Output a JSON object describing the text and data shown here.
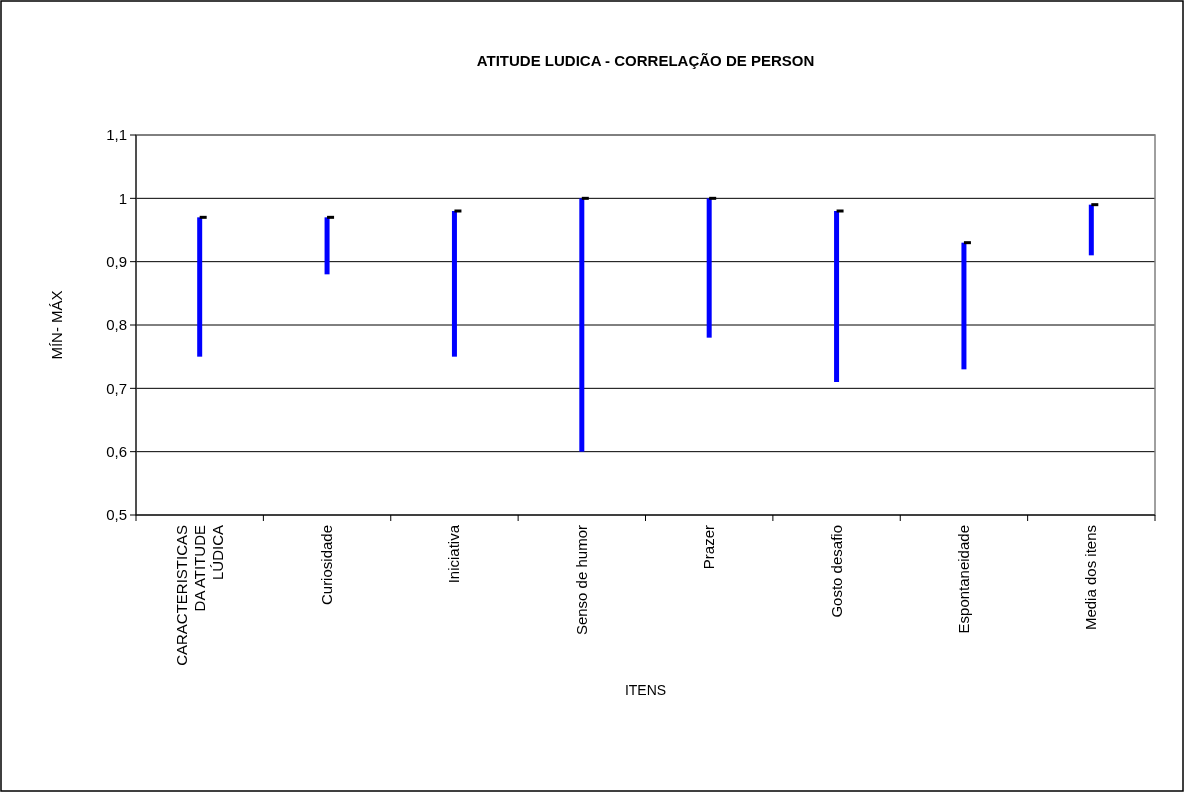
{
  "chart_data": {
    "type": "bar",
    "title": "ATITUDE LUDICA - CORRELAÇÃO DE PERSON",
    "xlabel": "ITENS",
    "ylabel": "MÍN- MÁX",
    "categories": [
      "CARACTERISTICAS DA ATITUDE LÚDICA",
      "Curiosidade",
      "Iniciativa",
      "Senso de humor",
      "Prazer",
      "Gosto desafio",
      "Espontaneidade",
      "Media dos itens"
    ],
    "series": [
      {
        "color": "#0000ff",
        "base": [
          0.75,
          0.88,
          0.75,
          0.6,
          0.78,
          0.71,
          0.73,
          0.91
        ],
        "values": [
          0.22,
          0.09,
          0.23,
          0.4,
          0.22,
          0.27,
          0.2,
          0.08
        ]
      },
      {
        "type": "scatter",
        "color": "#000000",
        "marker": "square",
        "x": [
          "CARACTERISTICAS DA ATITUDE LÚDICA",
          "Curiosidade",
          "Iniciativa",
          "Senso de humor",
          "Prazer",
          "Gosto desafio",
          "Espontaneidade",
          "Media dos itens"
        ],
        "values": [
          0.97,
          0.97,
          0.98,
          1.0,
          1.0,
          0.98,
          0.93,
          0.99
        ]
      }
    ],
    "ylim": [
      0.5,
      1.1
    ],
    "yticks": [
      {
        "value": 0.5,
        "label": "0,5"
      },
      {
        "value": 0.6,
        "label": "0,6"
      },
      {
        "value": 0.7,
        "label": "0,7"
      },
      {
        "value": 0.8,
        "label": "0,8"
      },
      {
        "value": 0.9,
        "label": "0,9"
      },
      {
        "value": 1,
        "label": "1"
      },
      {
        "value": 1.1,
        "label": "1,1"
      }
    ],
    "grid": "y"
  }
}
